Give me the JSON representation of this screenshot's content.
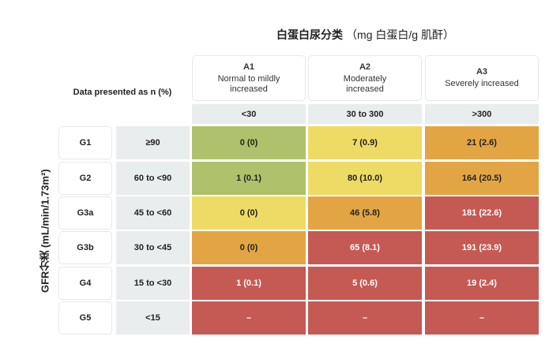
{
  "title": {
    "bold": "白蛋白尿分类",
    "rest": "（mg 白蛋白/g 肌酐）"
  },
  "data_presented": "Data presented as n (%)",
  "y_axis_label": "GFR分类 (mL/min/1.73m²)",
  "columns": [
    {
      "code": "A1",
      "desc": "Normal to mildly increased",
      "range": "<30"
    },
    {
      "code": "A2",
      "desc": "Moderately increased",
      "range": "30 to 300"
    },
    {
      "code": "A3",
      "desc": "Severely increased",
      "range": ">300"
    }
  ],
  "colors": {
    "green": "#afc26b",
    "yellow": "#eedb66",
    "orange": "#e3a544",
    "red": "#c55a54"
  },
  "rows": [
    {
      "code": "G1",
      "range": "≥90",
      "cells": [
        "0 (0)",
        "7 (0.9)",
        "21 (2.6)"
      ],
      "risk": [
        "green",
        "yellow",
        "orange"
      ]
    },
    {
      "code": "G2",
      "range": "60 to <90",
      "cells": [
        "1 (0.1)",
        "80 (10.0)",
        "164 (20.5)"
      ],
      "risk": [
        "green",
        "yellow",
        "orange"
      ]
    },
    {
      "code": "G3a",
      "range": "45 to <60",
      "cells": [
        "0 (0)",
        "46 (5.8)",
        "181 (22.6)"
      ],
      "risk": [
        "yellow",
        "orange",
        "red"
      ]
    },
    {
      "code": "G3b",
      "range": "30 to <45",
      "cells": [
        "0 (0)",
        "65 (8.1)",
        "191 (23.9)"
      ],
      "risk": [
        "orange",
        "red",
        "red"
      ]
    },
    {
      "code": "G4",
      "range": "15 to <30",
      "cells": [
        "1 (0.1)",
        "5 (0.6)",
        "19 (2.4)"
      ],
      "risk": [
        "red",
        "red",
        "red"
      ]
    },
    {
      "code": "G5",
      "range": "<15",
      "cells": [
        "–",
        "–",
        "–"
      ],
      "risk": [
        "red",
        "red",
        "red"
      ]
    }
  ]
}
